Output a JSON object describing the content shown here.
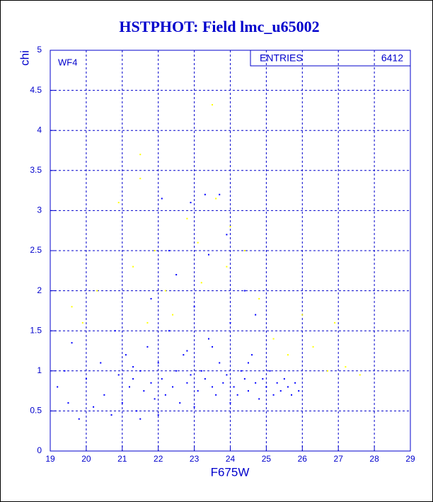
{
  "chart_data": {
    "type": "scatter",
    "title": "HSTPHOT: Field lmc_u65002",
    "x_label": "F675W",
    "y_label": "chi",
    "annotation": "WF4",
    "stats": {
      "label": "ENTRIES",
      "value": 6412
    },
    "xlim": [
      19,
      29
    ],
    "ylim": [
      0,
      5
    ],
    "xticks": [
      19,
      20,
      21,
      22,
      23,
      24,
      25,
      26,
      27,
      28,
      29
    ],
    "yticks": [
      0,
      0.5,
      1,
      1.5,
      2,
      2.5,
      3,
      3.5,
      4,
      4.5,
      5
    ],
    "grid": true,
    "series": [
      {
        "color": "#0000ff",
        "x": [
          19.2,
          19.4,
          19.5,
          19.6,
          19.8,
          20.0,
          20.2,
          20.4,
          20.5,
          20.7,
          20.9,
          21.0,
          21.1,
          21.2,
          21.3,
          21.4,
          21.5,
          21.6,
          21.7,
          21.8,
          21.9,
          22.0,
          22.1,
          22.2,
          22.3,
          22.4,
          22.5,
          22.6,
          22.7,
          22.8,
          22.9,
          23.0,
          23.1,
          23.2,
          23.3,
          23.4,
          23.5,
          23.6,
          23.7,
          23.8,
          23.9,
          24.0,
          24.1,
          24.2,
          24.3,
          24.4,
          24.5,
          24.6,
          24.7,
          24.8,
          24.9,
          25.0,
          25.1,
          25.2,
          25.3,
          25.4,
          25.5,
          25.6,
          25.7,
          25.8,
          25.9,
          22.1,
          22.9,
          23.3,
          23.7,
          23.4,
          22.5,
          24.4,
          21.8,
          23.9,
          22.3,
          24.7,
          20.8,
          21.5,
          23.0,
          24.0,
          22.0,
          23.5,
          24.5,
          22.8,
          21.3
        ],
        "y": [
          0.8,
          1.0,
          0.6,
          1.35,
          0.4,
          0.9,
          0.55,
          1.1,
          0.7,
          0.45,
          0.95,
          0.6,
          1.2,
          0.8,
          0.9,
          0.5,
          1.0,
          0.75,
          1.3,
          0.85,
          0.65,
          1.1,
          0.9,
          0.7,
          1.5,
          0.8,
          1.0,
          0.6,
          1.2,
          0.85,
          0.95,
          1.8,
          0.75,
          1.0,
          0.9,
          1.4,
          0.8,
          0.7,
          1.1,
          0.85,
          0.95,
          1.6,
          0.8,
          0.7,
          1.0,
          0.9,
          0.75,
          1.2,
          0.85,
          0.65,
          0.9,
          0.8,
          1.0,
          0.7,
          0.85,
          0.75,
          0.9,
          0.8,
          0.7,
          0.85,
          0.75,
          3.15,
          3.1,
          3.2,
          3.2,
          2.45,
          2.2,
          2.0,
          1.9,
          2.7,
          2.5,
          1.7,
          1.5,
          0.4,
          0.55,
          0.6,
          0.45,
          1.3,
          1.1,
          1.25,
          1.05
        ]
      },
      {
        "color": "#ffff00",
        "x": [
          19.6,
          19.9,
          20.3,
          20.9,
          21.3,
          21.5,
          21.5,
          21.9,
          22.2,
          22.8,
          23.1,
          23.5,
          23.6,
          23.9,
          24.0,
          24.4,
          24.8,
          25.2,
          25.6,
          26.0,
          26.3,
          26.7,
          26.9,
          27.2,
          27.6,
          22.4,
          23.2,
          21.7
        ],
        "y": [
          1.8,
          1.6,
          2.0,
          3.1,
          2.3,
          3.7,
          3.4,
          2.5,
          2.0,
          2.9,
          2.6,
          4.32,
          3.15,
          2.3,
          2.8,
          2.5,
          1.9,
          1.4,
          1.2,
          1.7,
          1.3,
          1.0,
          1.6,
          1.05,
          0.95,
          1.7,
          2.1,
          1.6
        ]
      }
    ]
  }
}
